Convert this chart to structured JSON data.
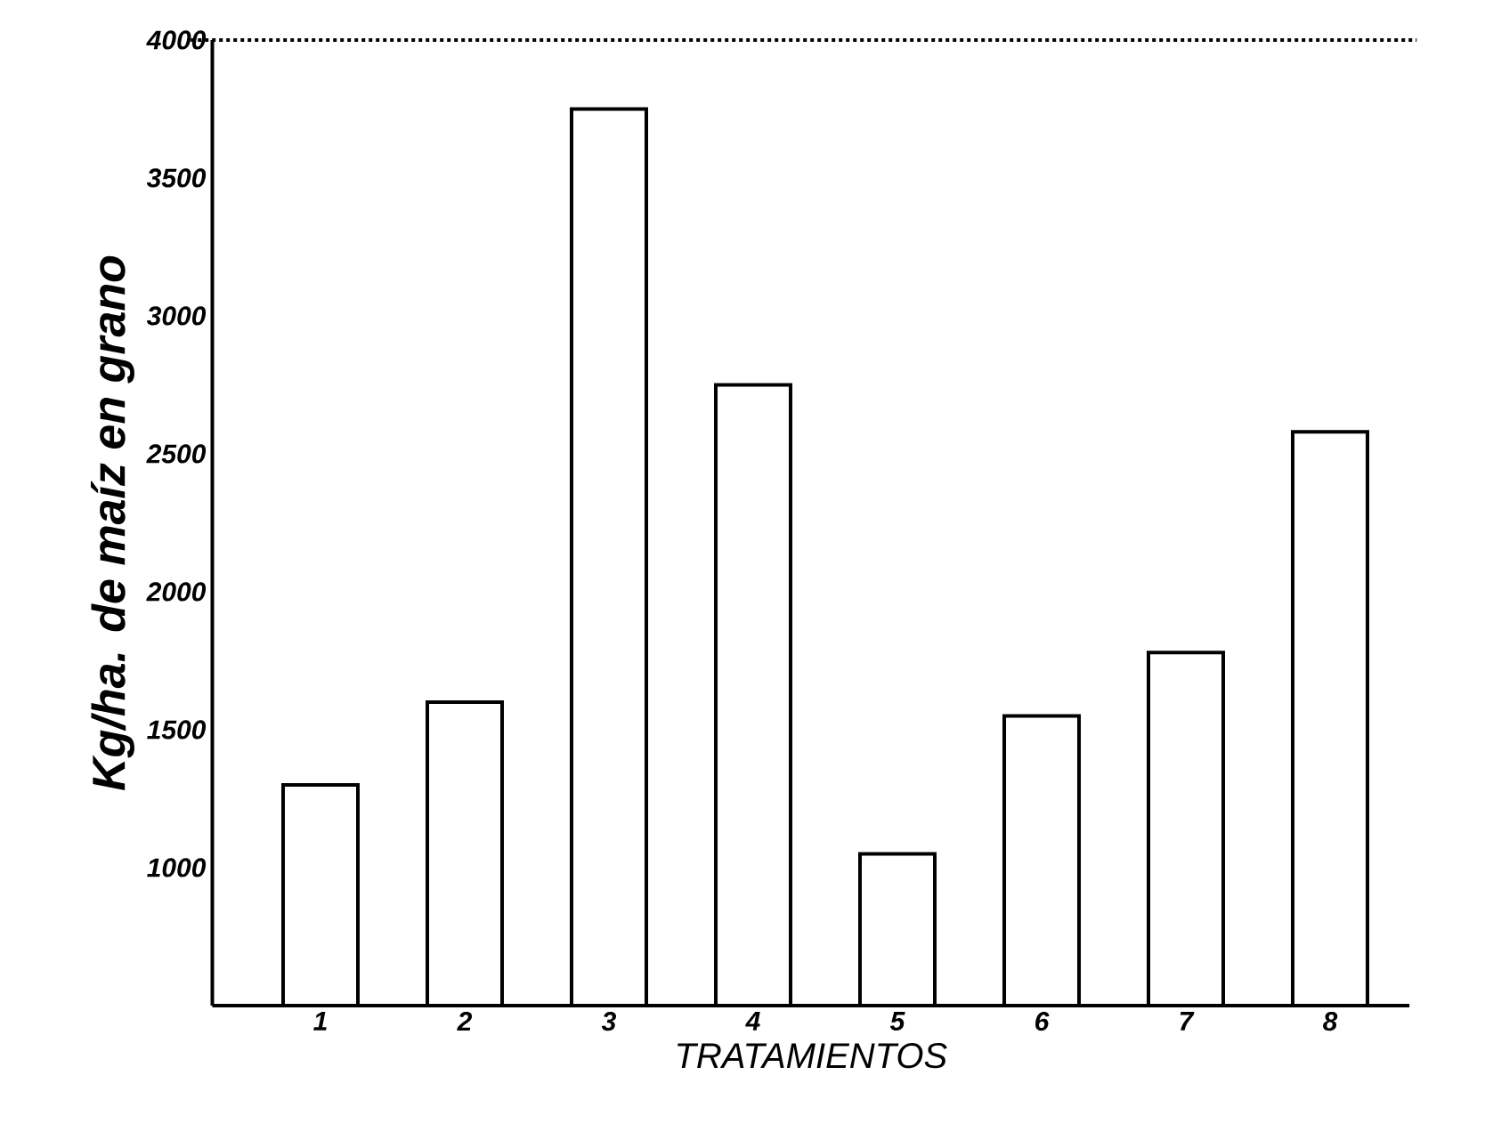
{
  "chart_data": {
    "type": "bar",
    "xlabel": "TRATAMIENTOS",
    "ylabel": "Kg/ha. de maíz en grano",
    "categories": [
      "1",
      "2",
      "3",
      "4",
      "5",
      "6",
      "7",
      "8"
    ],
    "values": [
      1300,
      1600,
      3750,
      2750,
      1050,
      1550,
      1780,
      2580
    ],
    "color": "#ffffff",
    "ylim": [
      500,
      4000
    ],
    "yticks": [
      1000,
      1500,
      2000,
      2500,
      3000,
      3500,
      4000
    ],
    "ref_lines": [
      {
        "axis": "y",
        "value": 4000,
        "line_style": "dotted"
      }
    ],
    "grid": false
  }
}
